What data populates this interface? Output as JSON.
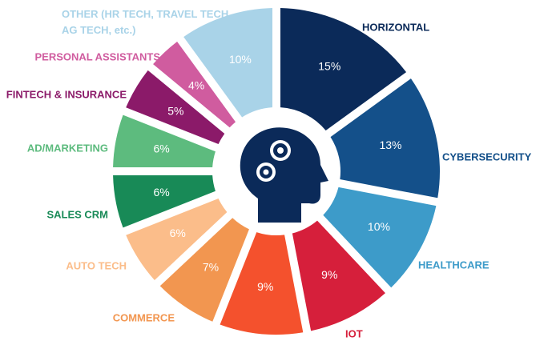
{
  "chart_data": {
    "type": "donut",
    "categories": [
      "HORIZONTAL",
      "CYBERSECURITY",
      "HEALTHCARE",
      "IOT",
      null,
      "COMMERCE",
      "AUTO TECH",
      "SALES CRM",
      "AD/MARKETING",
      "FINTECH & INSURANCE",
      "PERSONAL ASSISTANTS",
      "OTHER (HR TECH, TRAVEL TECH, AG TECH, etc.)"
    ],
    "values": [
      15,
      13,
      10,
      9,
      9,
      7,
      6,
      6,
      6,
      5,
      4,
      10
    ],
    "value_labels": [
      "15%",
      "13%",
      "10%",
      "9%",
      "9%",
      "7%",
      "6%",
      "6%",
      "6%",
      "5%",
      "4%",
      "10%"
    ],
    "colors": [
      "#0b2a59",
      "#14508a",
      "#3d9bc9",
      "#d61f3b",
      "#f4512d",
      "#f29650",
      "#fbbd8a",
      "#188a57",
      "#5dbb7e",
      "#8b1a69",
      "#d05c9f",
      "#a9d3e8"
    ]
  }
}
